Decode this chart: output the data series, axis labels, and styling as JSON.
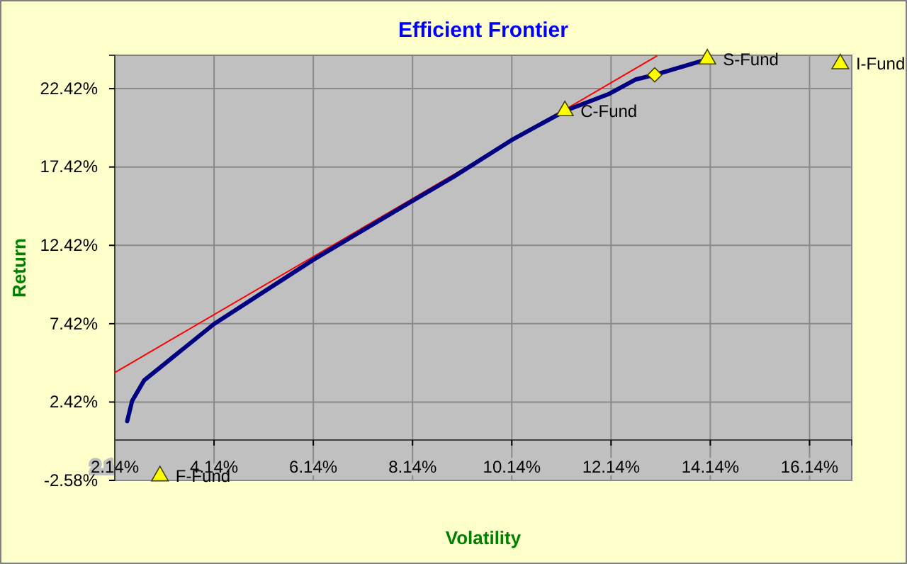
{
  "chart_data": {
    "type": "line",
    "title": "Efficient Frontier",
    "xlabel": "Volatility",
    "ylabel": "Return",
    "xlim": [
      2.14,
      16.99
    ],
    "ylim": [
      -2.58,
      24.55
    ],
    "xticks": [
      {
        "value": 2.14,
        "label": "2.14%"
      },
      {
        "value": 4.14,
        "label": "4.14%"
      },
      {
        "value": 6.14,
        "label": "6.14%"
      },
      {
        "value": 8.14,
        "label": "8.14%"
      },
      {
        "value": 10.14,
        "label": "10.14%"
      },
      {
        "value": 12.14,
        "label": "12.14%"
      },
      {
        "value": 14.14,
        "label": "14.14%"
      },
      {
        "value": 16.14,
        "label": "16.14%"
      }
    ],
    "yticks": [
      {
        "value": -2.58,
        "label": "-2.58%"
      },
      {
        "value": 2.42,
        "label": "2.42%"
      },
      {
        "value": 7.42,
        "label": "7.42%"
      },
      {
        "value": 12.42,
        "label": "12.42%"
      },
      {
        "value": 17.42,
        "label": "17.42%"
      },
      {
        "value": 22.42,
        "label": "22.42%"
      }
    ],
    "grid": true,
    "series": [
      {
        "type": "line",
        "color": "#ff0000",
        "x": [
          2.14,
          13.06
        ],
        "values": [
          4.3,
          24.5
        ]
      },
      {
        "type": "line",
        "color": "#000080",
        "x": [
          2.39,
          2.49,
          2.73,
          3.16,
          4.14,
          6.14,
          8.16,
          8.97,
          10.17,
          11.21,
          12.11,
          12.63,
          13.02,
          14.08
        ],
        "values": [
          1.2,
          2.5,
          3.8,
          4.9,
          7.4,
          11.5,
          15.3,
          16.8,
          19.2,
          21.0,
          22.1,
          23.0,
          23.3,
          24.3
        ]
      },
      {
        "type": "scatter",
        "name": "F-Fund",
        "color": "#ffff00",
        "marker": "triangle",
        "x": [
          3.05
        ],
        "values": [
          -2.3
        ]
      },
      {
        "type": "scatter",
        "name": "C-Fund",
        "color": "#ffff00",
        "marker": "triangle",
        "x": [
          11.21
        ],
        "values": [
          21.0
        ]
      },
      {
        "type": "scatter",
        "name": "S-Fund",
        "color": "#ffff00",
        "marker": "triangle",
        "x": [
          14.08
        ],
        "values": [
          24.3
        ]
      },
      {
        "type": "scatter",
        "name": "I-Fund",
        "color": "#ffff00",
        "marker": "triangle",
        "x": [
          16.76
        ],
        "values": [
          24.0
        ]
      },
      {
        "type": "scatter",
        "color": "#ffff00",
        "marker": "diamond",
        "x": [
          13.02
        ],
        "values": [
          23.3
        ]
      }
    ]
  }
}
